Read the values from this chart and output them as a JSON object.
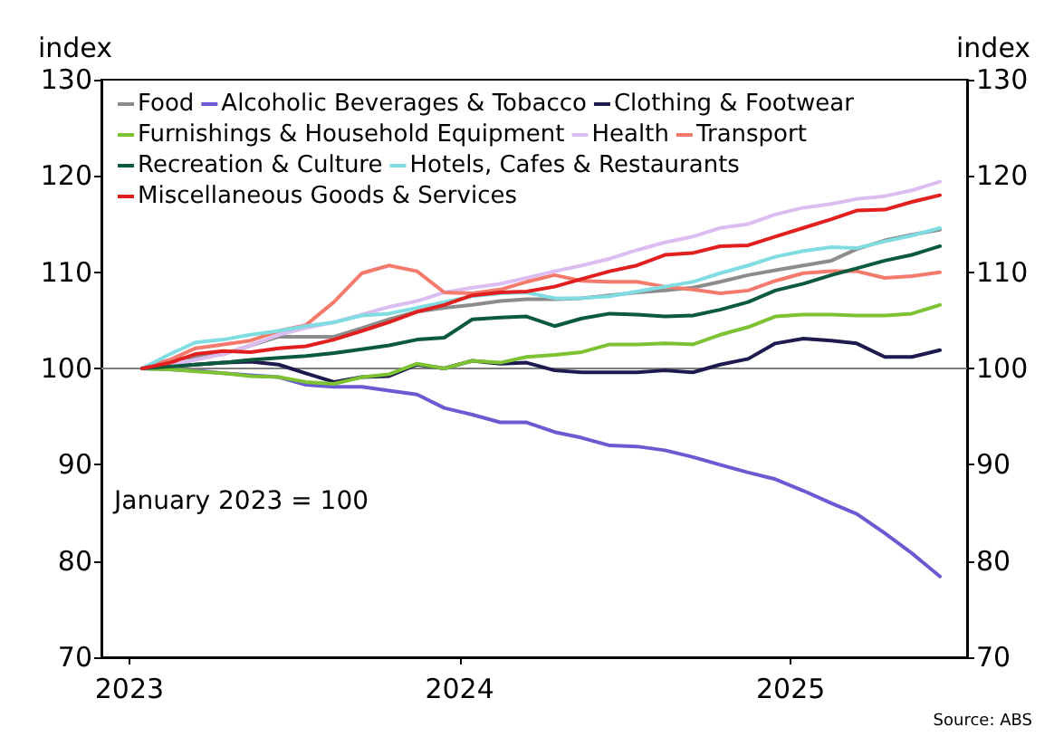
{
  "chart_data": {
    "type": "line",
    "ylabel": "index",
    "y2label": "index",
    "x": [
      "2023-01-15",
      "2023-02-15",
      "2023-03-15",
      "2023-04-15",
      "2023-05-15",
      "2023-06-15",
      "2023-07-15",
      "2023-08-15",
      "2023-09-15",
      "2023-10-15",
      "2023-11-15",
      "2023-12-15",
      "2024-01-15",
      "2024-02-15",
      "2024-03-15",
      "2024-04-15",
      "2024-05-15",
      "2024-06-15",
      "2024-07-15",
      "2024-08-15",
      "2024-09-15",
      "2024-10-15",
      "2024-11-15",
      "2024-12-15",
      "2025-01-15",
      "2025-02-15",
      "2025-03-15",
      "2025-04-15",
      "2025-05-15",
      "2025-06-15"
    ],
    "xlim": [
      "2022-12-01",
      "2025-07-15"
    ],
    "xticks": [
      {
        "value": "2023-01-01",
        "label": "2023"
      },
      {
        "value": "2024-01-01",
        "label": "2024"
      },
      {
        "value": "2025-01-01",
        "label": "2025"
      }
    ],
    "ylim": [
      70,
      130
    ],
    "yticks": [
      70,
      80,
      90,
      100,
      110,
      120,
      130
    ],
    "y2lim": [
      70,
      130
    ],
    "y2ticks": [
      70,
      80,
      90,
      100,
      110,
      120,
      130
    ],
    "grid": false,
    "legend": "top left",
    "marker": "none",
    "line_style": "solid",
    "ref_lines": [
      {
        "axis": "y",
        "value": 100,
        "color": "#808080"
      }
    ],
    "annotations": [
      "January 2023 = 100",
      "Source: ABS"
    ],
    "series": [
      {
        "name": "Food",
        "color": "#8c8c8c",
        "values": [
          100,
          100.9,
          101.2,
          101.5,
          102.4,
          103.3,
          103.3,
          103.3,
          104.2,
          105.1,
          105.9,
          106.3,
          106.6,
          107.0,
          107.2,
          107.2,
          107.3,
          107.6,
          107.9,
          108.1,
          108.4,
          109.0,
          109.7,
          110.2,
          110.7,
          111.2,
          112.4,
          113.3,
          113.9,
          114.4
        ]
      },
      {
        "name": "Alcoholic Beverages & Tobacco",
        "color": "#6b5bd2",
        "values": [
          100,
          99.9,
          99.8,
          99.5,
          99.3,
          99.1,
          98.3,
          98.1,
          98.1,
          97.7,
          97.3,
          95.9,
          95.2,
          94.4,
          94.4,
          93.4,
          92.8,
          92.0,
          91.9,
          91.5,
          90.8,
          90.0,
          89.2,
          88.5,
          87.3,
          86.0,
          84.9,
          82.9,
          80.8,
          78.4
        ]
      },
      {
        "name": "Clothing & Footwear",
        "color": "#1c1a4f",
        "values": [
          100,
          100.2,
          100.4,
          100.6,
          100.7,
          100.4,
          99.5,
          98.6,
          99.1,
          99.2,
          100.4,
          100,
          100.8,
          100.5,
          100.6,
          99.8,
          99.6,
          99.6,
          99.6,
          99.8,
          99.6,
          100.4,
          101.0,
          102.6,
          103.1,
          102.9,
          102.6,
          101.2,
          101.2,
          101.9
        ]
      },
      {
        "name": "Furnishings & Household Equipment",
        "color": "#7cc232",
        "values": [
          100,
          99.9,
          99.7,
          99.5,
          99.2,
          99.1,
          98.6,
          98.4,
          99.1,
          99.4,
          100.5,
          100,
          100.8,
          100.6,
          101.2,
          101.4,
          101.7,
          102.5,
          102.5,
          102.6,
          102.5,
          103.5,
          104.3,
          105.4,
          105.6,
          105.6,
          105.5,
          105.5,
          105.7,
          106.6
        ]
      },
      {
        "name": "Health",
        "color": "#dcbdf2",
        "values": [
          100,
          100.3,
          100.9,
          101.5,
          102.4,
          103.5,
          104.2,
          104.8,
          105.6,
          106.4,
          107.0,
          107.9,
          108.4,
          108.8,
          109.4,
          110.1,
          110.7,
          111.4,
          112.3,
          113.1,
          113.7,
          114.6,
          115.0,
          116.0,
          116.7,
          117.1,
          117.6,
          117.9,
          118.5,
          119.4
        ]
      },
      {
        "name": "Transport",
        "color": "#f47a6c",
        "values": [
          100,
          100.9,
          102.1,
          102.5,
          102.9,
          103.9,
          104.5,
          106.9,
          109.9,
          110.7,
          110.1,
          107.9,
          107.8,
          108.2,
          109.0,
          109.7,
          109.1,
          109.0,
          109.0,
          108.5,
          108.2,
          107.8,
          108.1,
          109.1,
          109.9,
          110.1,
          110.1,
          109.4,
          109.6,
          110.0
        ]
      },
      {
        "name": "Recreation & Culture",
        "color": "#0b5a3c",
        "values": [
          100,
          100.2,
          100.4,
          100.6,
          100.9,
          101.1,
          101.3,
          101.6,
          102.0,
          102.4,
          103.0,
          103.2,
          105.1,
          105.3,
          105.4,
          104.4,
          105.2,
          105.7,
          105.6,
          105.4,
          105.5,
          106.1,
          106.9,
          108.1,
          108.8,
          109.7,
          110.4,
          111.2,
          111.8,
          112.7
        ]
      },
      {
        "name": "Hotels, Cafes & Restaurants",
        "color": "#7fdde2",
        "values": [
          100,
          101.5,
          102.7,
          103.0,
          103.5,
          103.9,
          104.4,
          104.8,
          105.5,
          105.7,
          106.3,
          106.9,
          107.5,
          107.8,
          107.9,
          107.3,
          107.3,
          107.5,
          108.0,
          108.5,
          109.0,
          109.9,
          110.7,
          111.6,
          112.2,
          112.6,
          112.5,
          113.2,
          113.8,
          114.6
        ]
      },
      {
        "name": "Miscellaneous Goods & Services",
        "color": "#e11f1f",
        "values": [
          100,
          100.6,
          101.5,
          101.8,
          101.7,
          102.1,
          102.3,
          103.0,
          103.9,
          104.8,
          105.9,
          106.6,
          107.6,
          107.9,
          108.0,
          108.5,
          109.3,
          110.1,
          110.7,
          111.8,
          112.0,
          112.7,
          112.8,
          113.7,
          114.6,
          115.5,
          116.4,
          116.5,
          117.3,
          118.0
        ]
      }
    ]
  }
}
